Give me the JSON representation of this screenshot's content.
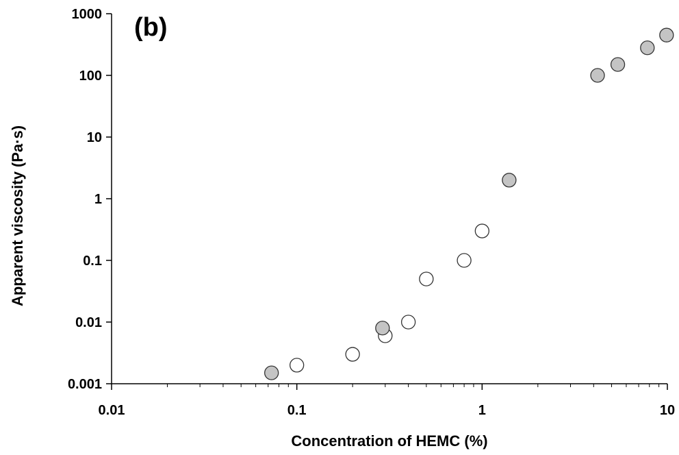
{
  "chart_data": {
    "type": "scatter",
    "annotation": "(b)",
    "xlabel": "Concentration of HEMC (%)",
    "ylabel": "Apparent viscosity (Pa·s)",
    "xscale": "log",
    "yscale": "log",
    "xlim": [
      0.01,
      10
    ],
    "ylim": [
      0.001,
      1000
    ],
    "x_ticks": [
      {
        "value": 0.01,
        "label": "0.01"
      },
      {
        "value": 0.1,
        "label": "0.1"
      },
      {
        "value": 1,
        "label": "1"
      },
      {
        "value": 10,
        "label": "10"
      }
    ],
    "y_ticks": [
      {
        "value": 0.001,
        "label": "0.001"
      },
      {
        "value": 0.01,
        "label": "0.01"
      },
      {
        "value": 0.1,
        "label": "0.1"
      },
      {
        "value": 1,
        "label": "1"
      },
      {
        "value": 10,
        "label": "10"
      },
      {
        "value": 100,
        "label": "100"
      },
      {
        "value": 1000,
        "label": "1000"
      }
    ],
    "grid": false,
    "legend": false,
    "series": [
      {
        "marker": "open-circle",
        "fill": "#ffffff",
        "stroke": "#333333",
        "points": [
          {
            "x": 0.1,
            "y": 0.002
          },
          {
            "x": 0.2,
            "y": 0.003
          },
          {
            "x": 0.3,
            "y": 0.006
          },
          {
            "x": 0.4,
            "y": 0.01
          },
          {
            "x": 0.5,
            "y": 0.05
          },
          {
            "x": 0.8,
            "y": 0.1
          },
          {
            "x": 1.0,
            "y": 0.3
          }
        ]
      },
      {
        "marker": "filled-circle",
        "fill": "#c4c4c4",
        "stroke": "#333333",
        "points": [
          {
            "x": 0.073,
            "y": 0.0015
          },
          {
            "x": 0.29,
            "y": 0.008
          },
          {
            "x": 1.4,
            "y": 2.0
          },
          {
            "x": 4.2,
            "y": 100
          },
          {
            "x": 5.4,
            "y": 150
          },
          {
            "x": 7.8,
            "y": 280
          },
          {
            "x": 9.9,
            "y": 450
          }
        ]
      }
    ]
  }
}
